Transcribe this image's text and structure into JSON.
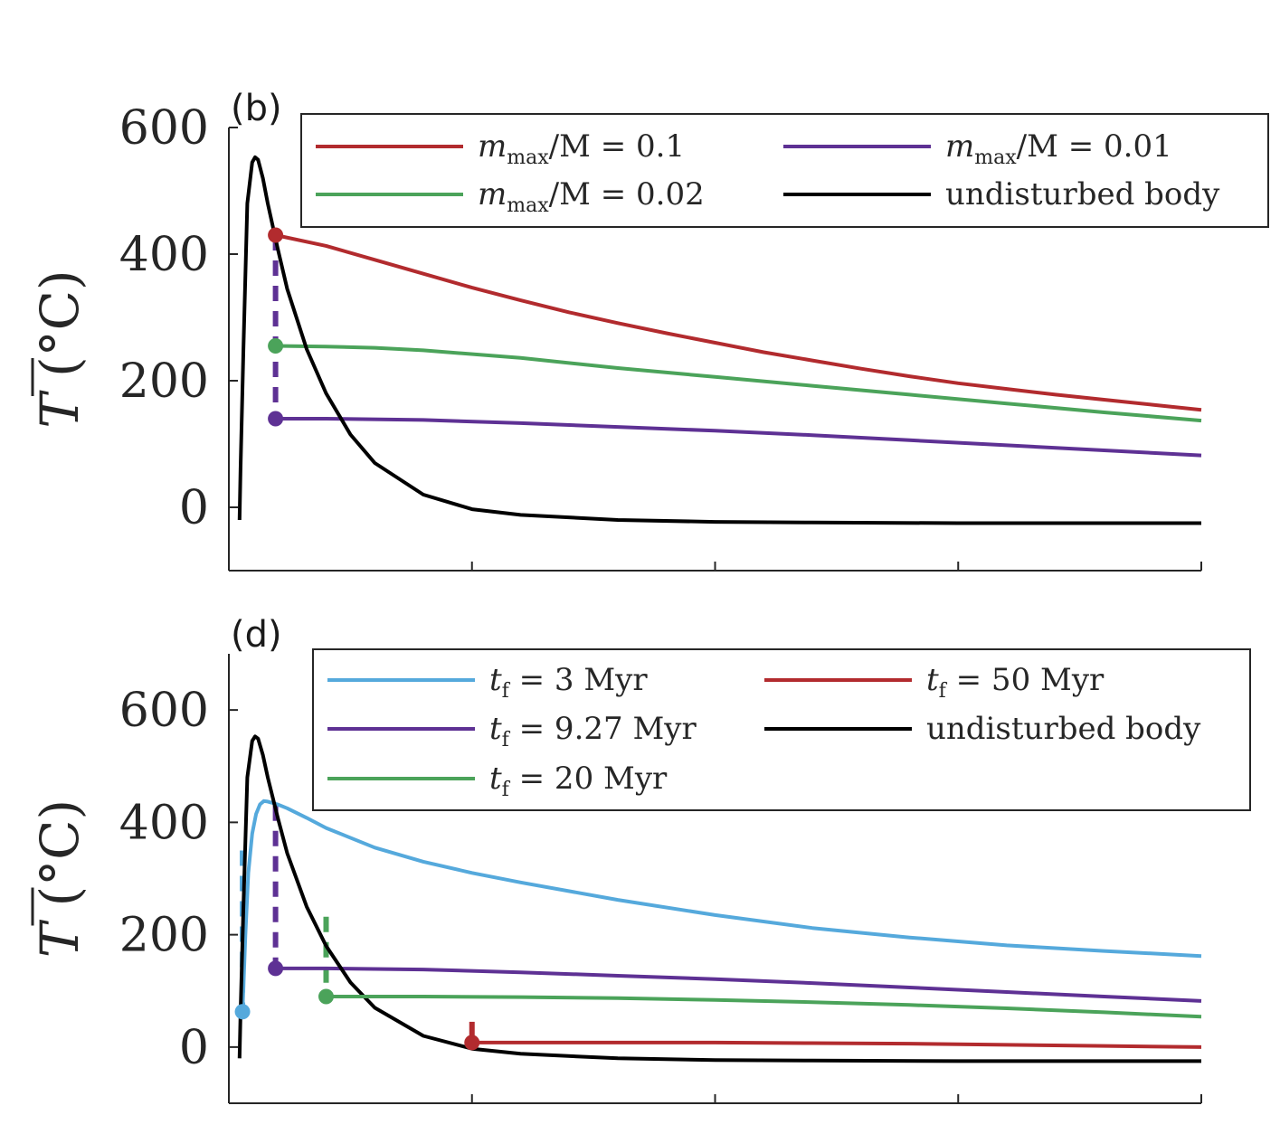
{
  "colors": {
    "red": "#b22b2e",
    "green": "#4ba35a",
    "purple": "#5e3194",
    "blue": "#55a9dc",
    "black": "#000000",
    "axis": "#262626"
  },
  "chart_data": [
    {
      "type": "line",
      "panel_label": "(b)",
      "ylabel_sym": "T",
      "ylabel_unit": "(°C)",
      "xlim": [
        0,
        100
      ],
      "ylim": [
        -100,
        600
      ],
      "xticks": [
        0,
        25,
        50,
        75,
        100
      ],
      "yticks": [
        0,
        200,
        400,
        600
      ],
      "ytick_labels": [
        "0",
        "200",
        "400",
        "600"
      ],
      "legend_position": "top-right",
      "legend_columns": 2,
      "series": [
        {
          "name": "mmax/M = 0.1",
          "name_pre": "m",
          "name_sub": "max",
          "name_post": "/M = 0.1",
          "color": "#b22b2e",
          "legend_col": 0,
          "legend_row": 0,
          "x": [
            4.8,
            10,
            15,
            20,
            25,
            30,
            35,
            40,
            45,
            50,
            55,
            60,
            65,
            70,
            75,
            80,
            85,
            90,
            95,
            100
          ],
          "y": [
            430,
            413,
            391,
            369,
            347,
            327,
            308,
            291,
            275,
            260,
            245,
            232,
            219,
            207,
            196,
            187,
            178,
            170,
            162,
            154
          ],
          "marker": {
            "x": 4.8,
            "y": 430,
            "drop_from": null
          }
        },
        {
          "name": "mmax/M = 0.01",
          "name_pre": "m",
          "name_sub": "max",
          "name_post": "/M = 0.01",
          "color": "#5e3194",
          "legend_col": 1,
          "legend_row": 0,
          "x": [
            4.8,
            10,
            20,
            30,
            40,
            50,
            60,
            70,
            80,
            90,
            100
          ],
          "y": [
            140,
            140,
            138,
            133,
            127,
            121,
            114,
            106,
            98,
            90,
            82
          ],
          "marker": {
            "x": 4.8,
            "y": 140,
            "drop_from": 430
          }
        },
        {
          "name": "mmax/M = 0.02",
          "name_pre": "m",
          "name_sub": "max",
          "name_post": "/M = 0.02",
          "color": "#4ba35a",
          "legend_col": 0,
          "legend_row": 1,
          "x": [
            4.8,
            10,
            15,
            20,
            30,
            40,
            50,
            60,
            70,
            80,
            90,
            100
          ],
          "y": [
            255,
            254,
            252,
            248,
            236,
            220,
            206,
            192,
            178,
            164,
            150,
            137
          ],
          "marker": {
            "x": 4.8,
            "y": 255,
            "drop_from": null
          }
        },
        {
          "name": "undisturbed body",
          "name_pre": "undisturbed body",
          "name_sub": "",
          "name_post": "",
          "color": "#000000",
          "legend_col": 1,
          "legend_row": 1,
          "x": [
            1.1,
            1.2,
            1.5,
            1.9,
            2.4,
            2.7,
            3.0,
            3.5,
            4.0,
            5.0,
            6.0,
            8.0,
            10.0,
            12.5,
            15.0,
            20.0,
            25.0,
            30.0,
            40.0,
            50.0,
            60.0,
            75.0,
            100.0
          ],
          "y": [
            -20,
            60,
            250,
            480,
            545,
            553,
            549,
            520,
            480,
            410,
            345,
            250,
            180,
            115,
            70,
            20,
            -3,
            -12,
            -20,
            -23,
            -24,
            -25,
            -25
          ],
          "marker": null
        }
      ]
    },
    {
      "type": "line",
      "panel_label": "(d)",
      "ylabel_sym": "T",
      "ylabel_unit": "(°C)",
      "xlim": [
        0,
        100
      ],
      "ylim": [
        -100,
        700
      ],
      "xticks": [
        0,
        25,
        50,
        75,
        100
      ],
      "yticks": [
        0,
        200,
        400,
        600
      ],
      "ytick_labels": [
        "0",
        "200",
        "400",
        "600"
      ],
      "legend_position": "top-right",
      "legend_columns": 2,
      "series": [
        {
          "name": "tf = 3 Myr",
          "name_pre": "t",
          "name_sub": "f",
          "name_post": " = 3 Myr",
          "color": "#55a9dc",
          "legend_col": 0,
          "legend_row": 0,
          "x": [
            1.4,
            1.7,
            2.0,
            2.4,
            2.8,
            3.2,
            3.6,
            4.0,
            5.0,
            6.0,
            8.0,
            10.0,
            15.0,
            20.0,
            25.0,
            30.0,
            40.0,
            50.0,
            60.0,
            70.0,
            80.0,
            90.0,
            100.0
          ],
          "y": [
            63,
            200,
            310,
            380,
            415,
            432,
            438,
            437,
            432,
            425,
            408,
            390,
            355,
            330,
            310,
            293,
            262,
            235,
            212,
            195,
            181,
            171,
            162
          ],
          "marker": {
            "x": 1.4,
            "y": 63,
            "drop_from": 350
          }
        },
        {
          "name": "tf = 50 Myr",
          "name_pre": "t",
          "name_sub": "f",
          "name_post": " = 50 Myr",
          "color": "#b22b2e",
          "legend_col": 1,
          "legend_row": 0,
          "x": [
            25,
            40,
            50,
            60,
            70,
            80,
            90,
            100
          ],
          "y": [
            8,
            8,
            8,
            7,
            6,
            4,
            2,
            0
          ],
          "marker": {
            "x": 25,
            "y": 8,
            "drop_from": 45
          }
        },
        {
          "name": "tf = 9.27 Myr",
          "name_pre": "t",
          "name_sub": "f",
          "name_post": " = 9.27 Myr",
          "color": "#5e3194",
          "legend_col": 0,
          "legend_row": 1,
          "x": [
            4.8,
            10,
            20,
            30,
            40,
            50,
            60,
            70,
            80,
            90,
            100
          ],
          "y": [
            140,
            140,
            138,
            133,
            127,
            121,
            114,
            106,
            98,
            90,
            82
          ],
          "marker": {
            "x": 4.8,
            "y": 140,
            "drop_from": 430
          }
        },
        {
          "name": "undisturbed body",
          "name_pre": "undisturbed body",
          "name_sub": "",
          "name_post": "",
          "color": "#000000",
          "legend_col": 1,
          "legend_row": 1,
          "x": [
            1.1,
            1.2,
            1.5,
            1.9,
            2.4,
            2.7,
            3.0,
            3.5,
            4.0,
            5.0,
            6.0,
            8.0,
            10.0,
            12.5,
            15.0,
            20.0,
            25.0,
            30.0,
            40.0,
            50.0,
            60.0,
            75.0,
            100.0
          ],
          "y": [
            -20,
            60,
            250,
            480,
            545,
            553,
            549,
            520,
            480,
            410,
            345,
            250,
            180,
            115,
            70,
            20,
            -3,
            -12,
            -20,
            -23,
            -24,
            -25,
            -25
          ],
          "marker": null
        },
        {
          "name": "tf = 20 Myr",
          "name_pre": "t",
          "name_sub": "f",
          "name_post": " = 20 Myr",
          "color": "#4ba35a",
          "legend_col": 0,
          "legend_row": 2,
          "x": [
            10,
            20,
            30,
            40,
            50,
            60,
            70,
            80,
            90,
            100
          ],
          "y": [
            90,
            90,
            89,
            87,
            84,
            80,
            75,
            69,
            62,
            54
          ],
          "marker": {
            "x": 10,
            "y": 90,
            "drop_from": 232
          }
        }
      ]
    }
  ]
}
